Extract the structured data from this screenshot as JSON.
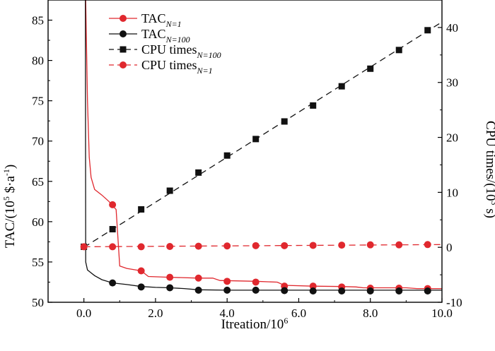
{
  "chart_data": {
    "type": "line",
    "xlabel": "Itreation/10^6",
    "ylabel_left": "TAC/(10^5 $·a^-1)",
    "ylabel_right": "CPU times/(10^3 s)",
    "xlim": [
      -1.0,
      10.0
    ],
    "ylim_left": [
      50,
      87.5
    ],
    "ylim_right": [
      -10,
      45
    ],
    "x_ticks": [
      "0.0",
      "2.0",
      "4.0",
      "6.0",
      "8.0",
      "10.0"
    ],
    "y_left_ticks": [
      "50",
      "55",
      "60",
      "65",
      "70",
      "75",
      "80",
      "85"
    ],
    "y_right_ticks": [
      "-10",
      "0",
      "10",
      "20",
      "30",
      "40"
    ],
    "legend_position": "top-left",
    "series": [
      {
        "name": "TAC",
        "sub": "N=1",
        "axis": "left",
        "color": "#e0282e",
        "marker": "circle",
        "dash": false,
        "curve": [
          [
            0.05,
            87.5
          ],
          [
            0.1,
            75
          ],
          [
            0.15,
            68
          ],
          [
            0.2,
            65.5
          ],
          [
            0.3,
            64
          ],
          [
            0.5,
            63.3
          ],
          [
            0.7,
            62.5
          ],
          [
            0.8,
            62.0
          ],
          [
            0.9,
            61.5
          ],
          [
            1.0,
            54.5
          ],
          [
            1.2,
            54.2
          ],
          [
            1.6,
            53.9
          ],
          [
            1.8,
            53.2
          ],
          [
            2.4,
            53.1
          ],
          [
            3.2,
            53.0
          ],
          [
            3.6,
            53.0
          ],
          [
            3.8,
            52.7
          ],
          [
            4.8,
            52.6
          ],
          [
            5.4,
            52.5
          ],
          [
            5.6,
            52.1
          ],
          [
            6.4,
            52.0
          ],
          [
            7.2,
            51.95
          ],
          [
            7.6,
            51.9
          ],
          [
            7.8,
            51.8
          ],
          [
            9.0,
            51.8
          ],
          [
            9.3,
            51.7
          ],
          [
            10.0,
            51.7
          ]
        ],
        "markers": [
          [
            0.8,
            62.1
          ],
          [
            1.6,
            53.9
          ],
          [
            2.4,
            53.1
          ],
          [
            3.2,
            53.0
          ],
          [
            4.0,
            52.6
          ],
          [
            4.8,
            52.5
          ],
          [
            5.6,
            52.0
          ],
          [
            6.4,
            52.0
          ],
          [
            7.2,
            51.9
          ],
          [
            8.0,
            51.75
          ],
          [
            8.8,
            51.75
          ],
          [
            9.6,
            51.7
          ]
        ]
      },
      {
        "name": "TAC",
        "sub": "N=100",
        "axis": "left",
        "color": "#111111",
        "marker": "circle",
        "dash": false,
        "curve": [
          [
            0.04,
            87.5
          ],
          [
            0.05,
            55.0
          ],
          [
            0.1,
            54.0
          ],
          [
            0.3,
            53.3
          ],
          [
            0.5,
            52.8
          ],
          [
            0.8,
            52.4
          ],
          [
            1.2,
            52.2
          ],
          [
            1.6,
            51.95
          ],
          [
            2.0,
            51.85
          ],
          [
            2.4,
            51.8
          ],
          [
            2.8,
            51.7
          ],
          [
            3.2,
            51.55
          ],
          [
            4.0,
            51.5
          ],
          [
            5.6,
            51.5
          ],
          [
            10.0,
            51.5
          ]
        ],
        "markers": [
          [
            0.8,
            52.4
          ],
          [
            1.6,
            51.9
          ],
          [
            2.4,
            51.8
          ],
          [
            3.2,
            51.5
          ],
          [
            4.0,
            51.5
          ],
          [
            4.8,
            51.5
          ],
          [
            5.6,
            51.45
          ],
          [
            6.4,
            51.4
          ],
          [
            7.2,
            51.4
          ],
          [
            8.0,
            51.4
          ],
          [
            8.8,
            51.4
          ],
          [
            9.6,
            51.4
          ]
        ]
      },
      {
        "name": "CPU times",
        "sub": "N=100",
        "axis": "right",
        "color": "#111111",
        "marker": "square",
        "dash": true,
        "curve": [
          [
            0.0,
            0.0
          ],
          [
            10.0,
            41.0
          ]
        ],
        "markers": [
          [
            0.0,
            0.1
          ],
          [
            0.8,
            3.3
          ],
          [
            1.6,
            6.9
          ],
          [
            2.4,
            10.3
          ],
          [
            3.2,
            13.6
          ],
          [
            4.0,
            16.7
          ],
          [
            4.8,
            19.7
          ],
          [
            5.6,
            22.9
          ],
          [
            6.4,
            25.8
          ],
          [
            7.2,
            29.3
          ],
          [
            8.0,
            32.5
          ],
          [
            8.8,
            35.9
          ],
          [
            9.6,
            39.5
          ]
        ]
      },
      {
        "name": "CPU times",
        "sub": "N=1",
        "axis": "right",
        "color": "#e0282e",
        "marker": "circle",
        "dash": true,
        "curve": [
          [
            0.0,
            0.1
          ],
          [
            10.0,
            0.5
          ]
        ],
        "markers": [
          [
            0.0,
            0.1
          ],
          [
            0.8,
            0.1
          ],
          [
            1.6,
            0.1
          ],
          [
            2.4,
            0.15
          ],
          [
            3.2,
            0.2
          ],
          [
            4.0,
            0.25
          ],
          [
            4.8,
            0.3
          ],
          [
            5.6,
            0.3
          ],
          [
            6.4,
            0.35
          ],
          [
            7.2,
            0.4
          ],
          [
            8.0,
            0.45
          ],
          [
            8.8,
            0.45
          ],
          [
            9.6,
            0.5
          ]
        ]
      }
    ]
  }
}
